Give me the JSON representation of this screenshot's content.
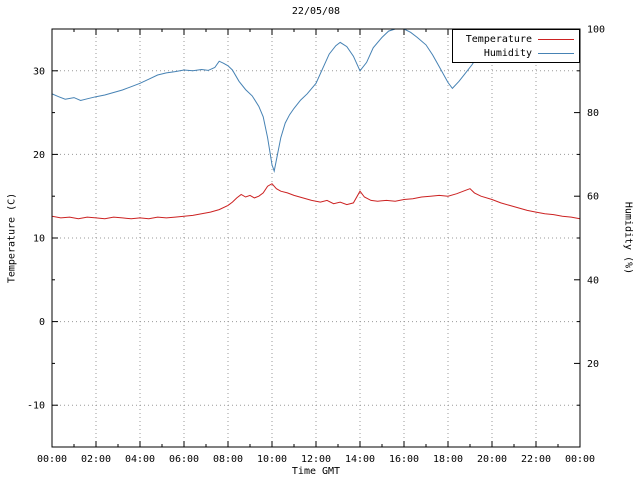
{
  "chart_data": {
    "type": "line",
    "title": "22/05/08",
    "xlabel": "Time GMT",
    "ylabel": "Temperature (C)",
    "y2label": "Humidity (%)",
    "grid": true,
    "legend_position": "top-right",
    "x_axis": {
      "min": 0,
      "max": 24,
      "tick_hours": [
        0,
        2,
        4,
        6,
        8,
        10,
        12,
        14,
        16,
        18,
        20,
        22,
        24
      ],
      "tick_labels": [
        "00:00",
        "02:00",
        "04:00",
        "06:00",
        "08:00",
        "10:00",
        "12:00",
        "14:00",
        "16:00",
        "18:00",
        "20:00",
        "22:00",
        "00:00"
      ],
      "minor_tick_hours": [
        1,
        3,
        5,
        7,
        9,
        11,
        13,
        15,
        17,
        19,
        21,
        23
      ]
    },
    "y_axis": {
      "min": -15,
      "max": 35,
      "ticks": [
        -10,
        0,
        10,
        20,
        30
      ],
      "minor_ticks": [
        -5,
        5,
        15,
        25
      ]
    },
    "y2_axis": {
      "min": 0,
      "max": 100,
      "ticks": [
        20,
        40,
        60,
        80,
        100
      ],
      "minor_ticks": [
        10,
        30,
        50,
        70,
        90
      ]
    },
    "series": [
      {
        "name": "Temperature",
        "color": "#cc2222",
        "axis": "left",
        "points": [
          [
            0,
            12.6
          ],
          [
            0.4,
            12.4
          ],
          [
            0.8,
            12.5
          ],
          [
            1.2,
            12.3
          ],
          [
            1.6,
            12.5
          ],
          [
            2,
            12.4
          ],
          [
            2.4,
            12.3
          ],
          [
            2.8,
            12.5
          ],
          [
            3.2,
            12.4
          ],
          [
            3.6,
            12.3
          ],
          [
            4,
            12.4
          ],
          [
            4.4,
            12.3
          ],
          [
            4.8,
            12.5
          ],
          [
            5.2,
            12.4
          ],
          [
            5.6,
            12.5
          ],
          [
            6,
            12.6
          ],
          [
            6.4,
            12.7
          ],
          [
            6.8,
            12.9
          ],
          [
            7.2,
            13.1
          ],
          [
            7.6,
            13.4
          ],
          [
            8,
            13.9
          ],
          [
            8.2,
            14.3
          ],
          [
            8.4,
            14.8
          ],
          [
            8.6,
            15.2
          ],
          [
            8.8,
            14.9
          ],
          [
            9,
            15.1
          ],
          [
            9.2,
            14.8
          ],
          [
            9.4,
            15.0
          ],
          [
            9.6,
            15.4
          ],
          [
            9.8,
            16.2
          ],
          [
            10,
            16.5
          ],
          [
            10.2,
            15.9
          ],
          [
            10.4,
            15.6
          ],
          [
            10.7,
            15.4
          ],
          [
            11,
            15.1
          ],
          [
            11.4,
            14.8
          ],
          [
            11.8,
            14.5
          ],
          [
            12.2,
            14.3
          ],
          [
            12.5,
            14.5
          ],
          [
            12.8,
            14.1
          ],
          [
            13.1,
            14.3
          ],
          [
            13.4,
            14.0
          ],
          [
            13.7,
            14.2
          ],
          [
            14,
            15.6
          ],
          [
            14.2,
            14.9
          ],
          [
            14.5,
            14.5
          ],
          [
            14.8,
            14.4
          ],
          [
            15.2,
            14.5
          ],
          [
            15.6,
            14.4
          ],
          [
            16,
            14.6
          ],
          [
            16.4,
            14.7
          ],
          [
            16.8,
            14.9
          ],
          [
            17.2,
            15.0
          ],
          [
            17.6,
            15.1
          ],
          [
            18,
            15.0
          ],
          [
            18.4,
            15.3
          ],
          [
            18.8,
            15.7
          ],
          [
            19,
            15.9
          ],
          [
            19.2,
            15.4
          ],
          [
            19.5,
            15.0
          ],
          [
            20,
            14.6
          ],
          [
            20.4,
            14.2
          ],
          [
            20.8,
            13.9
          ],
          [
            21.2,
            13.6
          ],
          [
            21.6,
            13.3
          ],
          [
            22,
            13.1
          ],
          [
            22.4,
            12.9
          ],
          [
            22.8,
            12.8
          ],
          [
            23.2,
            12.6
          ],
          [
            23.6,
            12.5
          ],
          [
            24,
            12.3
          ]
        ]
      },
      {
        "name": "Humidity",
        "color": "#4682b4",
        "axis": "right",
        "points": [
          [
            0,
            84.5
          ],
          [
            0.3,
            83.8
          ],
          [
            0.6,
            83.2
          ],
          [
            1,
            83.6
          ],
          [
            1.3,
            82.9
          ],
          [
            1.6,
            83.3
          ],
          [
            2,
            83.8
          ],
          [
            2.4,
            84.2
          ],
          [
            2.8,
            84.8
          ],
          [
            3.2,
            85.4
          ],
          [
            3.6,
            86.2
          ],
          [
            4,
            87
          ],
          [
            4.4,
            88
          ],
          [
            4.8,
            89
          ],
          [
            5.2,
            89.5
          ],
          [
            5.6,
            89.8
          ],
          [
            6,
            90.2
          ],
          [
            6.4,
            90
          ],
          [
            6.8,
            90.3
          ],
          [
            7.1,
            90.1
          ],
          [
            7.4,
            90.8
          ],
          [
            7.6,
            92.3
          ],
          [
            7.8,
            91.8
          ],
          [
            8,
            91.2
          ],
          [
            8.2,
            90.2
          ],
          [
            8.5,
            87.5
          ],
          [
            8.8,
            85.5
          ],
          [
            9.1,
            84
          ],
          [
            9.4,
            81.5
          ],
          [
            9.6,
            79
          ],
          [
            9.8,
            74
          ],
          [
            10,
            67.5
          ],
          [
            10.1,
            66
          ],
          [
            10.25,
            70
          ],
          [
            10.4,
            74
          ],
          [
            10.6,
            77.5
          ],
          [
            10.8,
            79.5
          ],
          [
            11,
            81
          ],
          [
            11.3,
            83
          ],
          [
            11.6,
            84.5
          ],
          [
            12,
            87
          ],
          [
            12.3,
            90.5
          ],
          [
            12.6,
            94
          ],
          [
            12.9,
            96
          ],
          [
            13.1,
            96.8
          ],
          [
            13.4,
            95.8
          ],
          [
            13.7,
            93.5
          ],
          [
            14,
            90
          ],
          [
            14.3,
            92
          ],
          [
            14.6,
            95.5
          ],
          [
            15,
            98
          ],
          [
            15.3,
            99.5
          ],
          [
            15.6,
            100
          ],
          [
            16,
            100
          ],
          [
            16.3,
            99.2
          ],
          [
            16.6,
            98
          ],
          [
            17,
            96.2
          ],
          [
            17.3,
            93.8
          ],
          [
            17.6,
            91
          ],
          [
            18,
            87.2
          ],
          [
            18.2,
            85.8
          ],
          [
            18.5,
            87.5
          ],
          [
            18.8,
            89.5
          ],
          [
            19.1,
            91.5
          ],
          [
            19.4,
            94
          ],
          [
            19.7,
            96.2
          ],
          [
            20,
            98
          ],
          [
            20.3,
            99.3
          ],
          [
            20.6,
            100
          ],
          [
            21,
            100
          ],
          [
            21.4,
            99.4
          ],
          [
            21.8,
            99
          ],
          [
            22.2,
            99.8
          ],
          [
            22.6,
            99
          ],
          [
            23,
            98.4
          ],
          [
            23.4,
            99
          ],
          [
            23.7,
            98.2
          ],
          [
            24,
            100
          ]
        ]
      }
    ]
  }
}
